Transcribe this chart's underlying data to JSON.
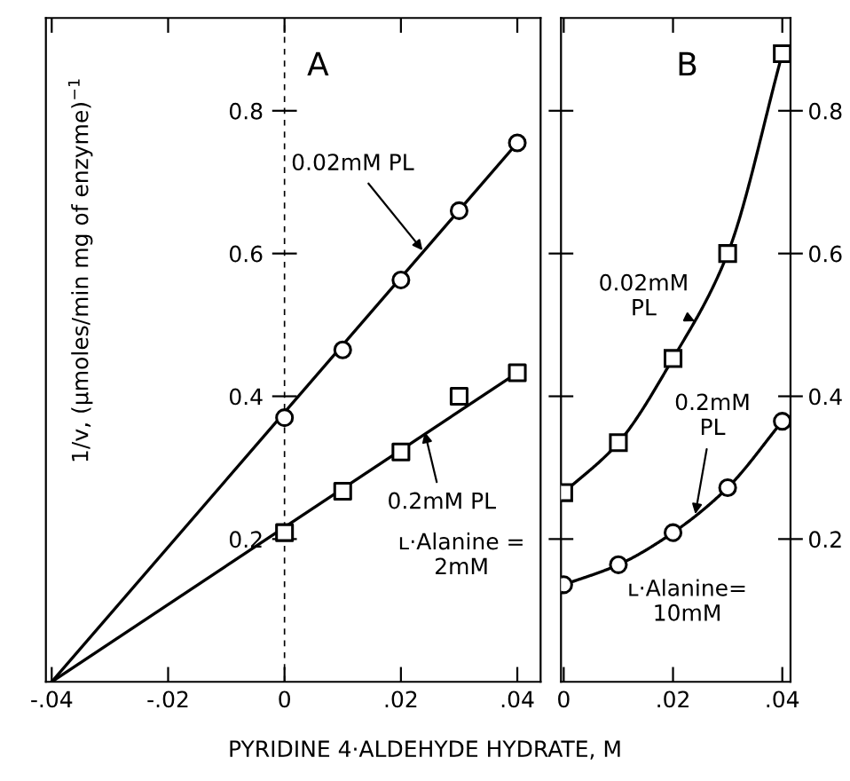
{
  "chart_data": [
    {
      "type": "scatter",
      "title": "A",
      "ylabel": "1/v, (μmoles/min mg of enzyme)$^{−1}$",
      "xlabel": "PYRIDINE 4·ALDEHYDE HYDRATE, M",
      "xlim": [
        -0.041,
        0.044
      ],
      "ylim": [
        0,
        0.93
      ],
      "xticks": [
        {
          "value": -0.04,
          "label": "-.04"
        },
        {
          "value": -0.02,
          "label": "-.02"
        },
        0,
        {
          "value": 0.02,
          "label": ".02"
        },
        {
          "value": 0.04,
          "label": ".04"
        }
      ],
      "yticks": [
        0.2,
        0.4,
        0.6,
        0.8
      ],
      "grid": false,
      "ref_lines": [
        {
          "axis": "x",
          "value": 0,
          "line_style": "dashed",
          "color": "#000000"
        }
      ],
      "annotations": [
        "ʟ·Alanine =\n2mM"
      ],
      "series": [
        {
          "type": "line",
          "color": "#000000",
          "marker": "none",
          "x": [
            -0.04,
            0.04
          ],
          "values": [
            0,
            0.755
          ]
        },
        {
          "type": "line",
          "color": "#000000",
          "marker": "none",
          "x": [
            -0.04,
            0.04
          ],
          "values": [
            0,
            0.433
          ]
        },
        {
          "name": "0.02mM PL",
          "color": "#000000",
          "marker": "circle",
          "x": [
            0,
            0.01,
            0.02,
            0.03,
            0.04
          ],
          "values": [
            0.37,
            0.465,
            0.563,
            0.66,
            0.755
          ]
        },
        {
          "name": "0.2mM PL",
          "color": "#000000",
          "marker": "square",
          "x": [
            0,
            0.01,
            0.02,
            0.03,
            0.04
          ],
          "values": [
            0.209,
            0.267,
            0.322,
            0.4,
            0.433
          ]
        }
      ]
    },
    {
      "type": "line",
      "title": "B",
      "xlim": [
        -0.0005,
        0.0415
      ],
      "ylim": [
        0,
        0.93
      ],
      "xticks": [
        0,
        {
          "value": 0.02,
          "label": ".02"
        },
        {
          "value": 0.04,
          "label": ".04"
        }
      ],
      "yticks": [
        0.2,
        0.4,
        0.6,
        0.8
      ],
      "grid": false,
      "annotations": [
        "ʟ·Alanine=\n10mM"
      ],
      "series": [
        {
          "name": "0.02mM\nPL",
          "color": "#000000",
          "marker": "square",
          "x": [
            0,
            0.01,
            0.02,
            0.03,
            0.04
          ],
          "values": [
            0.265,
            0.335,
            0.453,
            0.6,
            0.88
          ]
        },
        {
          "name": "0.2mM\nPL",
          "color": "#000000",
          "marker": "circle",
          "x": [
            0,
            0.01,
            0.02,
            0.03,
            0.04
          ],
          "values": [
            0.136,
            0.164,
            0.209,
            0.272,
            0.365
          ]
        }
      ]
    }
  ]
}
